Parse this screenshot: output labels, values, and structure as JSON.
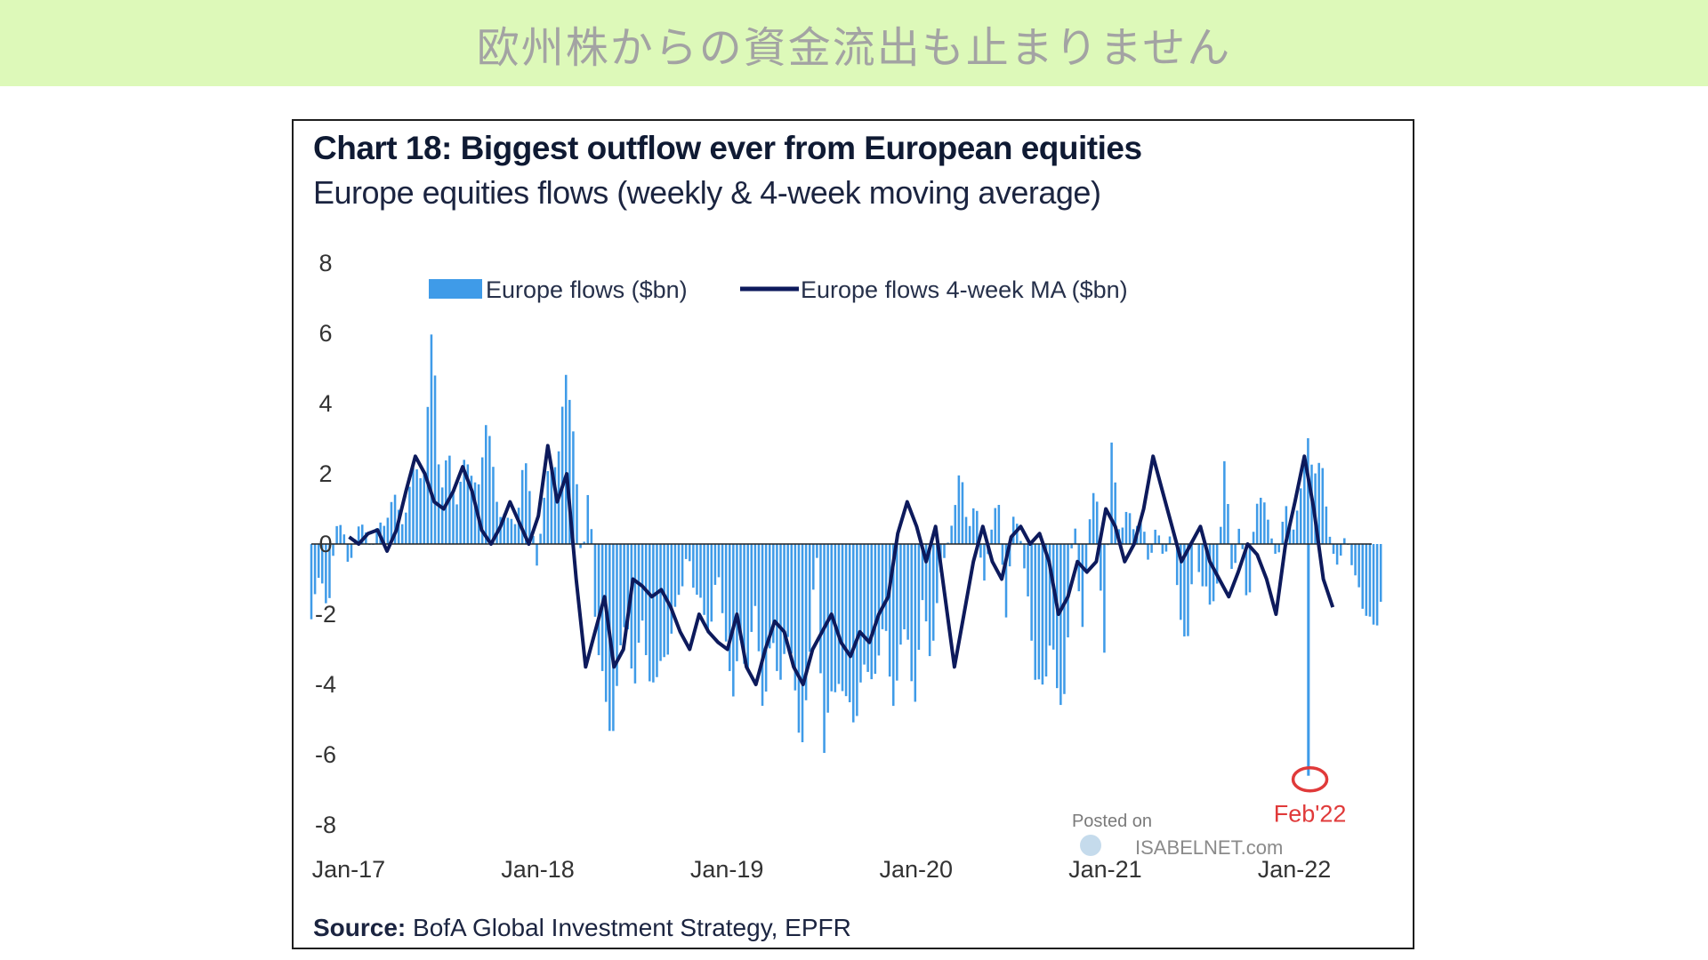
{
  "banner": {
    "title": "欧州株からの資金流出も止まりません"
  },
  "colors": {
    "banner_bg": "#ddf9b9",
    "bars": "#3f9be8",
    "ma_line": "#0d1a5c",
    "annotation": "#e03a3a"
  },
  "watermark": {
    "line1": "Posted on",
    "line2": "ISABELNET.com"
  },
  "source": {
    "label": "Source:",
    "text": "BofA Global Investment Strategy, EPFR"
  },
  "chart_data": {
    "type": "bar",
    "title": "Chart 18: Biggest outflow ever from European equities",
    "subtitle": "Europe equities flows (weekly & 4-week moving average)",
    "xlabel": "",
    "ylabel": "",
    "ylim": [
      -8,
      8
    ],
    "y_ticks": [
      "8",
      "6",
      "4",
      "2",
      "0",
      "-2",
      "-4",
      "-6",
      "-8"
    ],
    "x_ticks": [
      {
        "label": "Jan-17",
        "x": 2017.0
      },
      {
        "label": "Jan-18",
        "x": 2018.0
      },
      {
        "label": "Jan-19",
        "x": 2019.0
      },
      {
        "label": "Jan-20",
        "x": 2020.0
      },
      {
        "label": "Jan-21",
        "x": 2021.0
      },
      {
        "label": "Jan-22",
        "x": 2022.0
      }
    ],
    "xlim": [
      2016.85,
      2022.55
    ],
    "legend": {
      "position": "top",
      "entries": [
        "Europe flows ($bn)",
        "Europe flows 4-week MA ($bn)"
      ]
    },
    "annotation": {
      "label": "Feb'22",
      "x": 2022.12,
      "y": -6.6
    },
    "series": [
      {
        "name": "Europe flows ($bn)",
        "kind": "bar",
        "keys": [
          [
            2016.85,
            -1.8
          ],
          [
            2016.9,
            -1.2
          ],
          [
            2016.94,
            -1.5
          ],
          [
            2016.98,
            0.3
          ],
          [
            2017.02,
            0.5
          ],
          [
            2017.05,
            -0.6
          ],
          [
            2017.09,
            0.2
          ],
          [
            2017.13,
            0.8
          ],
          [
            2017.17,
            -0.3
          ],
          [
            2017.21,
            0.6
          ],
          [
            2017.25,
            0.9
          ],
          [
            2017.29,
            1.1
          ],
          [
            2017.33,
            0.8
          ],
          [
            2017.37,
            1.5
          ],
          [
            2017.41,
            2.0
          ],
          [
            2017.45,
            2.5
          ],
          [
            2017.49,
            6.0
          ],
          [
            2017.53,
            1.8
          ],
          [
            2017.57,
            2.6
          ],
          [
            2017.61,
            0.8
          ],
          [
            2017.65,
            2.8
          ],
          [
            2017.69,
            1.5
          ],
          [
            2017.73,
            2.0
          ],
          [
            2017.77,
            3.2
          ],
          [
            2017.81,
            2.2
          ],
          [
            2017.85,
            1.0
          ],
          [
            2017.89,
            0.5
          ],
          [
            2017.93,
            0.8
          ],
          [
            2017.97,
            2.2
          ],
          [
            2018.0,
            1.5
          ],
          [
            2018.04,
            -0.5
          ],
          [
            2018.08,
            1.0
          ],
          [
            2018.12,
            2.5
          ],
          [
            2018.16,
            2.8
          ],
          [
            2018.2,
            4.6
          ],
          [
            2018.24,
            3.5
          ],
          [
            2018.28,
            -1.0
          ],
          [
            2018.32,
            2.0
          ],
          [
            2018.36,
            -3.0
          ],
          [
            2018.4,
            -4.5
          ],
          [
            2018.44,
            -5.2
          ],
          [
            2018.48,
            -3.5
          ],
          [
            2018.52,
            -2.0
          ],
          [
            2018.56,
            -4.0
          ],
          [
            2018.6,
            -2.5
          ],
          [
            2018.64,
            -3.5
          ],
          [
            2018.68,
            -4.2
          ],
          [
            2018.72,
            -3.0
          ],
          [
            2018.76,
            -2.2
          ],
          [
            2018.8,
            -1.8
          ],
          [
            2018.84,
            0.2
          ],
          [
            2018.88,
            -2.0
          ],
          [
            2018.92,
            -1.5
          ],
          [
            2018.96,
            -2.5
          ],
          [
            2019.0,
            -1.0
          ],
          [
            2019.04,
            -2.2
          ],
          [
            2019.08,
            -4.8
          ],
          [
            2019.12,
            -2.5
          ],
          [
            2019.16,
            -3.5
          ],
          [
            2019.2,
            -2.0
          ],
          [
            2019.24,
            -4.5
          ],
          [
            2019.28,
            -3.0
          ],
          [
            2019.32,
            -3.8
          ],
          [
            2019.36,
            -2.5
          ],
          [
            2019.4,
            -4.0
          ],
          [
            2019.44,
            -5.5
          ],
          [
            2019.48,
            -4.0
          ],
          [
            2019.52,
            0.2
          ],
          [
            2019.56,
            -6.0
          ],
          [
            2019.6,
            -4.5
          ],
          [
            2019.64,
            -3.5
          ],
          [
            2019.68,
            -4.8
          ],
          [
            2019.72,
            -5.0
          ],
          [
            2019.76,
            -3.5
          ],
          [
            2019.8,
            -4.2
          ],
          [
            2019.84,
            -3.0
          ],
          [
            2019.88,
            -2.5
          ],
          [
            2019.92,
            -4.5
          ],
          [
            2019.96,
            -3.0
          ],
          [
            2020.0,
            -2.8
          ],
          [
            2020.04,
            -4.2
          ],
          [
            2020.08,
            -2.0
          ],
          [
            2020.12,
            -3.0
          ],
          [
            2020.16,
            -1.5
          ],
          [
            2020.2,
            -0.5
          ],
          [
            2020.24,
            1.0
          ],
          [
            2020.28,
            1.8
          ],
          [
            2020.32,
            0.5
          ],
          [
            2020.36,
            1.5
          ],
          [
            2020.4,
            -1.5
          ],
          [
            2020.44,
            0.5
          ],
          [
            2020.48,
            1.2
          ],
          [
            2020.52,
            -2.0
          ],
          [
            2020.56,
            0.8
          ],
          [
            2020.6,
            0.0
          ],
          [
            2020.64,
            -1.2
          ],
          [
            2020.68,
            -4.5
          ],
          [
            2020.72,
            -3.8
          ],
          [
            2020.76,
            -2.5
          ],
          [
            2020.8,
            -5.0
          ],
          [
            2020.84,
            -3.5
          ],
          [
            2020.88,
            1.0
          ],
          [
            2020.92,
            -2.5
          ],
          [
            2020.96,
            0.5
          ],
          [
            2021.0,
            1.5
          ],
          [
            2021.04,
            -3.0
          ],
          [
            2021.08,
            2.5
          ],
          [
            2021.12,
            0.5
          ],
          [
            2021.16,
            1.0
          ],
          [
            2021.2,
            0.2
          ],
          [
            2021.24,
            1.2
          ],
          [
            2021.28,
            -1.0
          ],
          [
            2021.32,
            0.8
          ],
          [
            2021.36,
            -0.5
          ],
          [
            2021.4,
            0.3
          ],
          [
            2021.44,
            -1.5
          ],
          [
            2021.48,
            -3.5
          ],
          [
            2021.52,
            0.2
          ],
          [
            2021.56,
            -1.2
          ],
          [
            2021.6,
            -2.0
          ],
          [
            2021.64,
            -0.8
          ],
          [
            2021.68,
            2.2
          ],
          [
            2021.72,
            -1.0
          ],
          [
            2021.76,
            0.8
          ],
          [
            2021.8,
            -2.5
          ],
          [
            2021.84,
            1.5
          ],
          [
            2021.88,
            1.0
          ],
          [
            2021.92,
            0.5
          ],
          [
            2021.96,
            -0.5
          ],
          [
            2022.0,
            1.0
          ],
          [
            2022.04,
            0.6
          ],
          [
            2022.08,
            1.2
          ],
          [
            2022.12,
            3.3
          ],
          [
            2022.16,
            2.0
          ],
          [
            2022.2,
            1.8
          ],
          [
            2022.24,
            0.2
          ],
          [
            2022.28,
            -1.0
          ],
          [
            2022.32,
            0.5
          ],
          [
            2022.36,
            -0.8
          ],
          [
            2022.4,
            -2.0
          ],
          [
            2022.44,
            -1.5
          ],
          [
            2022.48,
            -3.0
          ],
          [
            2022.52,
            -1.0
          ]
        ]
      },
      {
        "name": "Europe flows 4-week MA ($bn)",
        "kind": "line",
        "points": [
          [
            2017.05,
            0.2
          ],
          [
            2017.1,
            0.0
          ],
          [
            2017.15,
            0.3
          ],
          [
            2017.2,
            0.4
          ],
          [
            2017.25,
            -0.2
          ],
          [
            2017.3,
            0.4
          ],
          [
            2017.35,
            1.5
          ],
          [
            2017.4,
            2.5
          ],
          [
            2017.45,
            2.0
          ],
          [
            2017.5,
            1.2
          ],
          [
            2017.55,
            1.0
          ],
          [
            2017.6,
            1.5
          ],
          [
            2017.65,
            2.2
          ],
          [
            2017.7,
            1.5
          ],
          [
            2017.75,
            0.4
          ],
          [
            2017.8,
            0.0
          ],
          [
            2017.85,
            0.5
          ],
          [
            2017.9,
            1.2
          ],
          [
            2017.95,
            0.6
          ],
          [
            2018.0,
            0.0
          ],
          [
            2018.05,
            0.8
          ],
          [
            2018.1,
            2.8
          ],
          [
            2018.15,
            1.2
          ],
          [
            2018.2,
            2.0
          ],
          [
            2018.25,
            -1.0
          ],
          [
            2018.3,
            -3.5
          ],
          [
            2018.35,
            -2.5
          ],
          [
            2018.4,
            -1.5
          ],
          [
            2018.45,
            -3.5
          ],
          [
            2018.5,
            -3.0
          ],
          [
            2018.55,
            -1.0
          ],
          [
            2018.6,
            -1.2
          ],
          [
            2018.65,
            -1.5
          ],
          [
            2018.7,
            -1.3
          ],
          [
            2018.75,
            -1.8
          ],
          [
            2018.8,
            -2.5
          ],
          [
            2018.85,
            -3.0
          ],
          [
            2018.9,
            -2.0
          ],
          [
            2018.95,
            -2.5
          ],
          [
            2019.0,
            -2.8
          ],
          [
            2019.05,
            -3.0
          ],
          [
            2019.1,
            -2.0
          ],
          [
            2019.15,
            -3.5
          ],
          [
            2019.2,
            -4.0
          ],
          [
            2019.25,
            -3.0
          ],
          [
            2019.3,
            -2.2
          ],
          [
            2019.35,
            -2.5
          ],
          [
            2019.4,
            -3.5
          ],
          [
            2019.45,
            -4.0
          ],
          [
            2019.5,
            -3.0
          ],
          [
            2019.55,
            -2.5
          ],
          [
            2019.6,
            -2.0
          ],
          [
            2019.65,
            -2.8
          ],
          [
            2019.7,
            -3.2
          ],
          [
            2019.75,
            -2.5
          ],
          [
            2019.8,
            -2.8
          ],
          [
            2019.85,
            -2.0
          ],
          [
            2019.9,
            -1.5
          ],
          [
            2019.95,
            0.3
          ],
          [
            2020.0,
            1.2
          ],
          [
            2020.05,
            0.5
          ],
          [
            2020.1,
            -0.5
          ],
          [
            2020.15,
            0.5
          ],
          [
            2020.2,
            -1.5
          ],
          [
            2020.25,
            -3.5
          ],
          [
            2020.3,
            -2.0
          ],
          [
            2020.35,
            -0.5
          ],
          [
            2020.4,
            0.5
          ],
          [
            2020.45,
            -0.5
          ],
          [
            2020.5,
            -1.0
          ],
          [
            2020.55,
            0.2
          ],
          [
            2020.6,
            0.5
          ],
          [
            2020.65,
            0.0
          ],
          [
            2020.7,
            0.3
          ],
          [
            2020.75,
            -0.5
          ],
          [
            2020.8,
            -2.0
          ],
          [
            2020.85,
            -1.5
          ],
          [
            2020.9,
            -0.5
          ],
          [
            2020.95,
            -0.8
          ],
          [
            2021.0,
            -0.5
          ],
          [
            2021.05,
            1.0
          ],
          [
            2021.1,
            0.5
          ],
          [
            2021.15,
            -0.5
          ],
          [
            2021.2,
            0.0
          ],
          [
            2021.25,
            1.0
          ],
          [
            2021.3,
            2.5
          ],
          [
            2021.35,
            1.5
          ],
          [
            2021.4,
            0.5
          ],
          [
            2021.45,
            -0.5
          ],
          [
            2021.5,
            0.0
          ],
          [
            2021.55,
            0.5
          ],
          [
            2021.6,
            -0.5
          ],
          [
            2021.65,
            -1.0
          ],
          [
            2021.7,
            -1.5
          ],
          [
            2021.75,
            -0.8
          ],
          [
            2021.8,
            0.0
          ],
          [
            2021.85,
            -0.3
          ],
          [
            2021.9,
            -1.0
          ],
          [
            2021.95,
            -2.0
          ],
          [
            2022.0,
            0.0
          ],
          [
            2022.05,
            1.2
          ],
          [
            2022.1,
            2.5
          ],
          [
            2022.15,
            1.0
          ],
          [
            2022.2,
            -1.0
          ],
          [
            2022.25,
            -1.8
          ]
        ]
      }
    ]
  }
}
